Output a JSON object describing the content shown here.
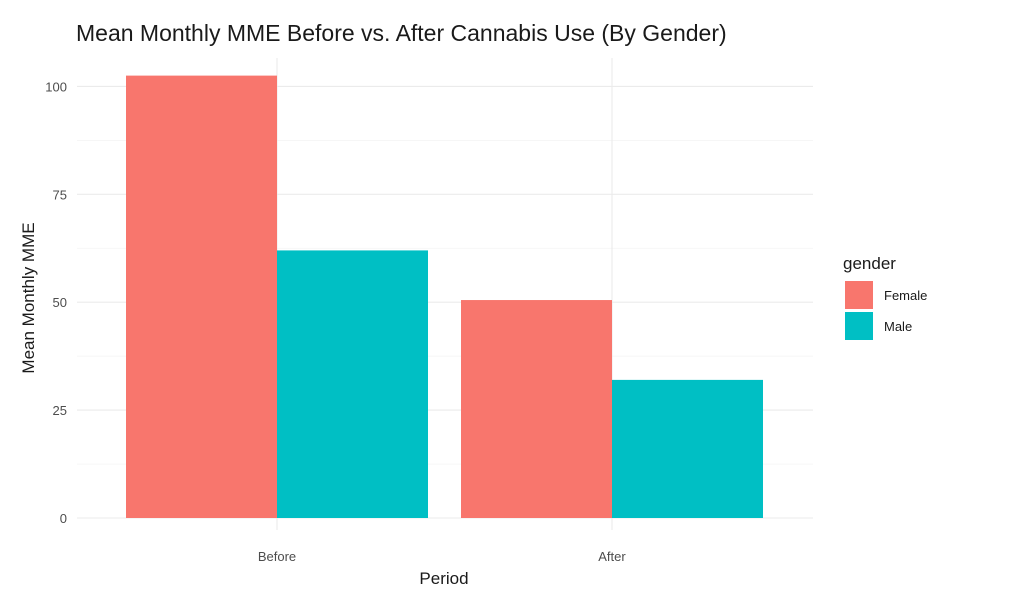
{
  "chart_data": {
    "type": "bar",
    "title": "Mean Monthly MME Before vs. After Cannabis Use (By Gender)",
    "xlabel": "Period",
    "ylabel": "Mean Monthly MME",
    "categories": [
      "Before",
      "After"
    ],
    "ylim": [
      0,
      105
    ],
    "yticks": [
      0,
      25,
      50,
      75,
      100
    ],
    "grid": true,
    "legend": {
      "title": "gender",
      "position": "right"
    },
    "series": [
      {
        "name": "Female",
        "color": "#F8766D",
        "values": [
          102.5,
          50.5
        ]
      },
      {
        "name": "Male",
        "color": "#00BFC4",
        "values": [
          62,
          32
        ]
      }
    ]
  }
}
